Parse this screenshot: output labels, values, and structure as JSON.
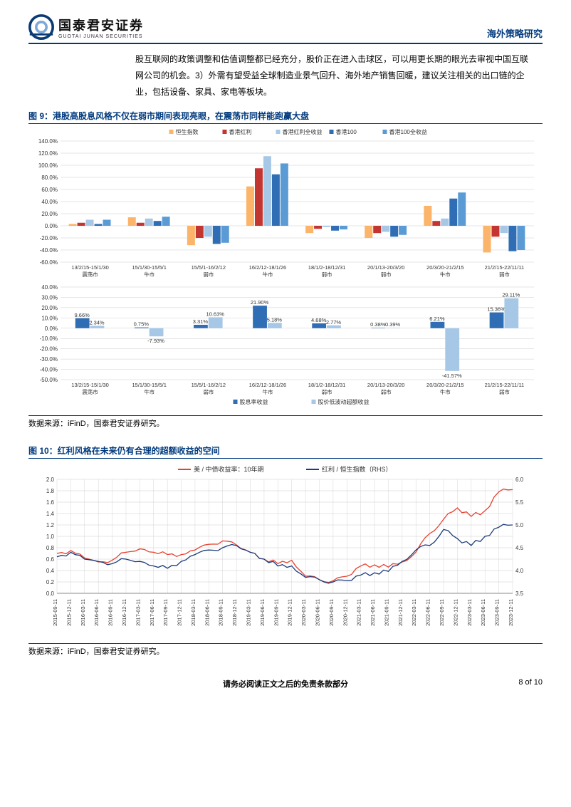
{
  "header": {
    "logo_cn": "国泰君安证券",
    "logo_en": "GUOTAI JUNAN SECURITIES",
    "right": "海外策略研究"
  },
  "bodyText": "股互联网的政策调整和估值调整都已经充分，股价正在进入击球区，可以用更长期的眼光去审视中国互联网公司的机会。3）外需有望受益全球制造业景气回升、海外地产销售回暖，建议关注相关的出口链的企业，包括设备、家具、家电等板块。",
  "fig9": {
    "title": "图 9：港股高股息风格不仅在弱市期间表现亮眼，在震荡市同样能跑赢大盘",
    "periods": [
      {
        "range": "13/2/15-15/1/30",
        "type": "震荡市"
      },
      {
        "range": "15/1/30-15/5/1",
        "type": "牛市"
      },
      {
        "range": "15/5/1-16/2/12",
        "type": "弱市"
      },
      {
        "range": "16/2/12-18/1/26",
        "type": "牛市"
      },
      {
        "range": "18/1/2-18/12/31",
        "type": "弱市"
      },
      {
        "range": "20/1/13-20/3/20",
        "type": "弱市"
      },
      {
        "range": "20/3/20-21/2/15",
        "type": "牛市"
      },
      {
        "range": "21/2/15-22/11/11",
        "type": "弱市"
      }
    ],
    "top": {
      "ylim": [
        -60,
        140
      ],
      "ystep": 20,
      "legend": [
        "恒生指数",
        "香港红利",
        "香港红利全收益",
        "香港100",
        "香港100全收益"
      ],
      "colors": [
        "#fbb469",
        "#c23531",
        "#a6c8e6",
        "#2f6eb5",
        "#5b9bd5"
      ],
      "data": [
        [
          3,
          5,
          10,
          3,
          10
        ],
        [
          14,
          5,
          12,
          8,
          15
        ],
        [
          -32,
          -20,
          -18,
          -30,
          -28
        ],
        [
          65,
          95,
          115,
          85,
          103
        ],
        [
          -12,
          -5,
          -2,
          -8,
          -6
        ],
        [
          -20,
          -12,
          -10,
          -18,
          -15
        ],
        [
          33,
          8,
          12,
          45,
          55
        ],
        [
          -44,
          -18,
          -12,
          -42,
          -40
        ]
      ]
    },
    "bottom": {
      "ylim": [
        -50,
        40
      ],
      "ystep": 10,
      "legend": [
        "股息率收益",
        "股价低波动超额收益"
      ],
      "colors": [
        "#2f6eb5",
        "#a6c8e6"
      ],
      "data": [
        {
          "a": 9.66,
          "b": 2.34
        },
        {
          "a": 0.75,
          "b": -7.93
        },
        {
          "a": 3.31,
          "b": 10.63
        },
        {
          "a": 21.9,
          "b": 5.18
        },
        {
          "a": 4.68,
          "b": 2.77
        },
        {
          "a": 0.38,
          "b": 0.39
        },
        {
          "a": 6.21,
          "b": -41.57
        },
        {
          "a": 15.36,
          "b": 29.11
        }
      ]
    },
    "source": "数据来源：iFinD，国泰君安证券研究。"
  },
  "fig10": {
    "title": "图 10：红利风格在未来仍有合理的超额收益的空间",
    "legend": [
      {
        "label": "美 / 中债收益率：10年期",
        "color": "#e8402f"
      },
      {
        "label": "红利 / 恒生指数（RHS）",
        "color": "#1a3a7a"
      }
    ],
    "ylimL": [
      0.0,
      2.0
    ],
    "ystepL": 0.2,
    "ylimR": [
      3.5,
      6.0
    ],
    "ystepR": 0.5,
    "xlabels": [
      "2015-09-11",
      "2015-12-11",
      "2016-03-11",
      "2016-06-11",
      "2016-09-11",
      "2016-12-11",
      "2017-03-11",
      "2017-06-11",
      "2017-09-11",
      "2017-12-11",
      "2018-03-11",
      "2018-06-11",
      "2018-09-11",
      "2018-12-11",
      "2019-03-11",
      "2019-06-11",
      "2019-09-11",
      "2019-12-11",
      "2020-03-11",
      "2020-06-11",
      "2020-09-11",
      "2020-12-11",
      "2021-03-11",
      "2021-06-11",
      "2021-09-11",
      "2021-12-11",
      "2022-03-11",
      "2022-06-11",
      "2022-09-11",
      "2022-12-11",
      "2023-03-11",
      "2023-06-11",
      "2023-09-11",
      "2023-12-11"
    ],
    "seriesRed": [
      0.7,
      0.75,
      0.62,
      0.55,
      0.58,
      0.72,
      0.78,
      0.72,
      0.68,
      0.68,
      0.76,
      0.86,
      0.92,
      0.85,
      0.72,
      0.6,
      0.52,
      0.58,
      0.3,
      0.24,
      0.22,
      0.3,
      0.48,
      0.5,
      0.46,
      0.55,
      0.72,
      1.05,
      1.3,
      1.5,
      1.35,
      1.45,
      1.78,
      1.82
    ],
    "seriesBlue": [
      4.3,
      4.4,
      4.25,
      4.2,
      4.15,
      4.25,
      4.2,
      4.1,
      4.05,
      4.2,
      4.35,
      4.45,
      4.5,
      4.55,
      4.4,
      4.25,
      4.1,
      4.1,
      3.85,
      3.8,
      3.75,
      3.78,
      3.9,
      3.95,
      3.98,
      4.2,
      4.45,
      4.55,
      4.9,
      4.7,
      4.55,
      4.75,
      4.95,
      5.0
    ],
    "source": "数据来源：iFinD，国泰君安证券研究。"
  },
  "footer": {
    "disclaimer": "请务必阅读正文之后的免责条款部分",
    "page": "8 of 10"
  },
  "chart_common": {
    "grid_color": "#cccccc",
    "axis_color": "#888888",
    "tick_font": 8,
    "label_font": 8
  }
}
